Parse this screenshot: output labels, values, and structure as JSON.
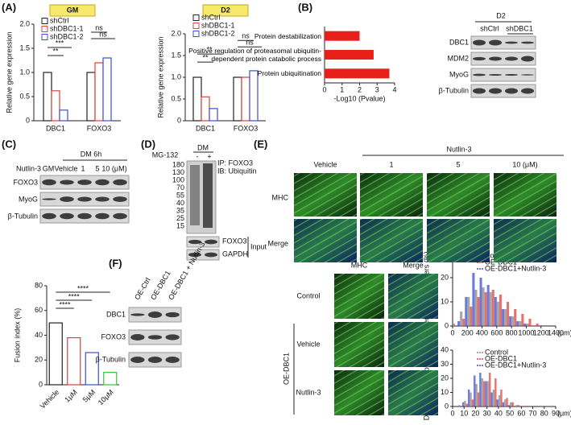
{
  "chart_data": [
    {
      "type": "bar",
      "title": "GM",
      "ylabel": "Relative gene expression",
      "categories": [
        "DBC1",
        "FOXO3"
      ],
      "series": [
        {
          "name": "shCtrl",
          "color": "#222222",
          "values": [
            1.0,
            1.0
          ]
        },
        {
          "name": "shDBC1-1",
          "color": "#e0403a",
          "values": [
            0.62,
            1.2
          ]
        },
        {
          "name": "shDBC1-2",
          "color": "#3a4fd0",
          "values": [
            0.22,
            1.3
          ]
        }
      ],
      "ylim": [
        0,
        2
      ],
      "yticks": [
        0,
        0.5,
        {
          "value": 1,
          "label": "1.0"
        },
        1.5,
        {
          "value": 2,
          "label": "2.0"
        }
      ],
      "annotations": [
        "***",
        "**",
        "ns",
        "ns"
      ]
    },
    {
      "type": "bar",
      "title": "D2",
      "ylabel": "Relative gene expression",
      "categories": [
        "DBC1",
        "FOXO3"
      ],
      "series": [
        {
          "name": "shCtrl",
          "color": "#222222",
          "values": [
            1.0,
            1.0
          ]
        },
        {
          "name": "shDBC1-1",
          "color": "#e0403a",
          "values": [
            0.55,
            1.0
          ]
        },
        {
          "name": "shDBC1-2",
          "color": "#3a4fd0",
          "values": [
            0.28,
            1.15
          ]
        }
      ],
      "ylim": [
        0,
        2
      ],
      "yticks": [
        0,
        0.5,
        {
          "value": 1,
          "label": "1.0"
        },
        1.5,
        {
          "value": 2,
          "label": "2.0"
        }
      ],
      "annotations": [
        "**",
        "**",
        "ns",
        "ns"
      ]
    },
    {
      "type": "hbar",
      "xlabel": "-Log10 (Pvalue)",
      "color": "#e8201a",
      "categories": [
        "Protein destabilization",
        "Positive regulation of proteasomal ubiquitin-dependent protein catabolic process",
        "Protein ubiquitination"
      ],
      "values": [
        2.0,
        2.8,
        3.7
      ],
      "xlim": [
        0,
        4
      ],
      "xticks": [
        0,
        1,
        2,
        3,
        4
      ]
    },
    {
      "type": "dotbar",
      "ylabel": "Fusion index (%)",
      "categories": [
        "Vehicle",
        "1μM",
        "5μM",
        "10μM"
      ],
      "colors": [
        "#222222",
        "#e0403a",
        "#3a4fd0",
        "#3cc040"
      ],
      "values": [
        50,
        38,
        26,
        10
      ],
      "ylim": [
        0,
        80
      ],
      "yticks": [
        0,
        20,
        40,
        60,
        80
      ],
      "annotations": [
        "****",
        "****",
        "****"
      ]
    },
    {
      "type": "histogram",
      "ylabel": "Length of myofibers (%)",
      "xlabel": "(μm)",
      "bins": [
        0,
        100,
        200,
        300,
        400,
        500,
        600,
        700,
        800,
        900,
        1000,
        1100,
        1200
      ],
      "series": [
        {
          "name": "Control",
          "color": "#888888",
          "values": [
            1,
            6,
            12,
            15,
            16,
            14,
            10,
            7,
            4,
            2,
            1,
            0
          ]
        },
        {
          "name": "OE-DBC1",
          "color": "#e0403a",
          "values": [
            0,
            3,
            8,
            12,
            14,
            15,
            13,
            10,
            7,
            5,
            3,
            1
          ]
        },
        {
          "name": "OE-DBC1+Nutlin-3",
          "color": "#3a4fd0",
          "values": [
            2,
            12,
            22,
            20,
            17,
            12,
            7,
            4,
            2,
            1,
            0,
            0
          ]
        }
      ],
      "xlim": [
        0,
        1400
      ],
      "xticks": [
        0,
        200,
        400,
        600,
        800,
        1000,
        1200,
        1400
      ],
      "ylim": [
        0,
        30
      ],
      "yticks": [
        0,
        10,
        20,
        30
      ]
    },
    {
      "type": "histogram",
      "ylabel": "Diameter of myofibers (%)",
      "xlabel": "(μm)",
      "bins": [
        5,
        10,
        15,
        20,
        25,
        30,
        35,
        40,
        45,
        50,
        55,
        60
      ],
      "series": [
        {
          "name": "Control",
          "color": "#888888",
          "values": [
            1,
            4,
            10,
            16,
            20,
            18,
            12,
            8,
            5,
            3,
            1
          ]
        },
        {
          "name": "OE-DBC1",
          "color": "#e0403a",
          "values": [
            0,
            2,
            5,
            10,
            18,
            24,
            20,
            12,
            6,
            3,
            1
          ]
        },
        {
          "name": "OE-DBC1+Nutlin-3",
          "color": "#3a4fd0",
          "values": [
            3,
            12,
            22,
            24,
            18,
            10,
            5,
            3,
            1,
            0,
            0
          ]
        }
      ],
      "xlim": [
        0,
        90
      ],
      "xticks": [
        0,
        10,
        20,
        30,
        40,
        50,
        60,
        70,
        80,
        90
      ],
      "ylim": [
        0,
        40
      ],
      "yticks": [
        0,
        10,
        20,
        30,
        40
      ]
    }
  ],
  "panels": {
    "A": {
      "label": "(A)"
    },
    "B": {
      "label": "(B)",
      "condition": "D2",
      "lanes": [
        "shCtrl",
        "shDBC1"
      ],
      "rows": [
        "DBC1",
        "MDM2",
        "MyoG",
        "β-Tubulin"
      ]
    },
    "C": {
      "label": "(C)",
      "condition": "DM 6h",
      "treatment": "Nutlin-3",
      "lanes": [
        "GM",
        "Vehicle",
        "1",
        "5",
        "10 (μM)"
      ],
      "rows": [
        "FOXO3",
        "MyoG",
        "β-Tubulin"
      ]
    },
    "D": {
      "label": "(D)",
      "condition": "DM",
      "treatment": "MG-132",
      "lanes": [
        "-",
        "+"
      ],
      "ip": "IP: FOXO3",
      "ib": "IB: Ubiquitin",
      "ladder": [
        "180",
        "130",
        "100",
        "70",
        "55",
        "40",
        "35",
        "25",
        "15"
      ],
      "rows": [
        "FOXO3",
        "GAPDH"
      ],
      "input": "Input"
    },
    "E": {
      "label": "(E)",
      "treatment": "Nutlin-3",
      "columns": [
        "Vehicle",
        "1",
        "5",
        "10 (μM)"
      ],
      "rows": [
        "MHC",
        "Merge"
      ]
    },
    "F": {
      "label": "(F)",
      "lanes": [
        "OE-Ctrl",
        "OE-DBC1",
        "OE-DBC1 + Nutlin-3"
      ],
      "rows": [
        "DBC1",
        "FOXO3",
        "β-Tubulin"
      ],
      "columns": [
        "MHC",
        "Merge"
      ],
      "conditions": [
        "Control",
        "Vehicle",
        "Nutlin-3"
      ],
      "group": "OE-DBC1"
    }
  }
}
